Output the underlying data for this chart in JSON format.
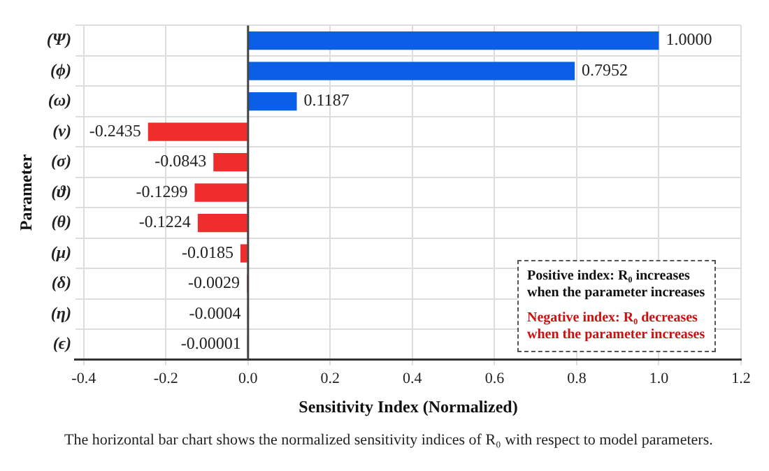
{
  "chart_data": {
    "type": "bar",
    "orientation": "horizontal",
    "xlabel": "Sensitivity Index (Normalized)",
    "ylabel": "Parameter",
    "categories": [
      "(Ψ)",
      "(ϕ)",
      "(ω)",
      "(ν)",
      "(σ)",
      "(ϑ)",
      "(θ)",
      "(μ)",
      "(δ)",
      "(η)",
      "(ϵ)"
    ],
    "values": [
      1,
      0.7952,
      0.1187,
      -0.2435,
      -0.0843,
      -0.1299,
      -0.1224,
      -0.0185,
      -0.0029,
      -0.0004,
      -1e-05
    ],
    "value_labels": [
      "1.0000",
      "0.7952",
      "0.1187",
      "-0.2435",
      "-0.0843",
      "-0.1299",
      "-0.1224",
      "-0.0185",
      "-0.0029",
      "-0.0004",
      "-0.00001"
    ],
    "colors": [
      "#0b5ee6",
      "#0b5ee6",
      "#0b5ee6",
      "#f02d2d",
      "#f02d2d",
      "#f02d2d",
      "#f02d2d",
      "#f02d2d",
      "#f02d2d",
      "#f02d2d",
      "#f02d2d"
    ],
    "xlim": [
      -0.42,
      1.2
    ],
    "xticks": [
      -0.4,
      -0.2,
      {
        "value": 0,
        "label": "0.0"
      },
      0.2,
      0.4,
      0.6,
      0.8,
      {
        "value": 1,
        "label": "1.0"
      },
      1.2
    ],
    "ref_lines": [
      {
        "axis": "x",
        "value": 0,
        "color": "#444444"
      }
    ],
    "grid": true,
    "legend": false,
    "annotations": [
      "Positive index: R₀ increases when the parameter increases",
      "Negative index: R₀ decreases when the parameter increases",
      "The horizontal bar chart shows the normalized sensitivity indices of R₀ with respect to model parameters."
    ]
  }
}
